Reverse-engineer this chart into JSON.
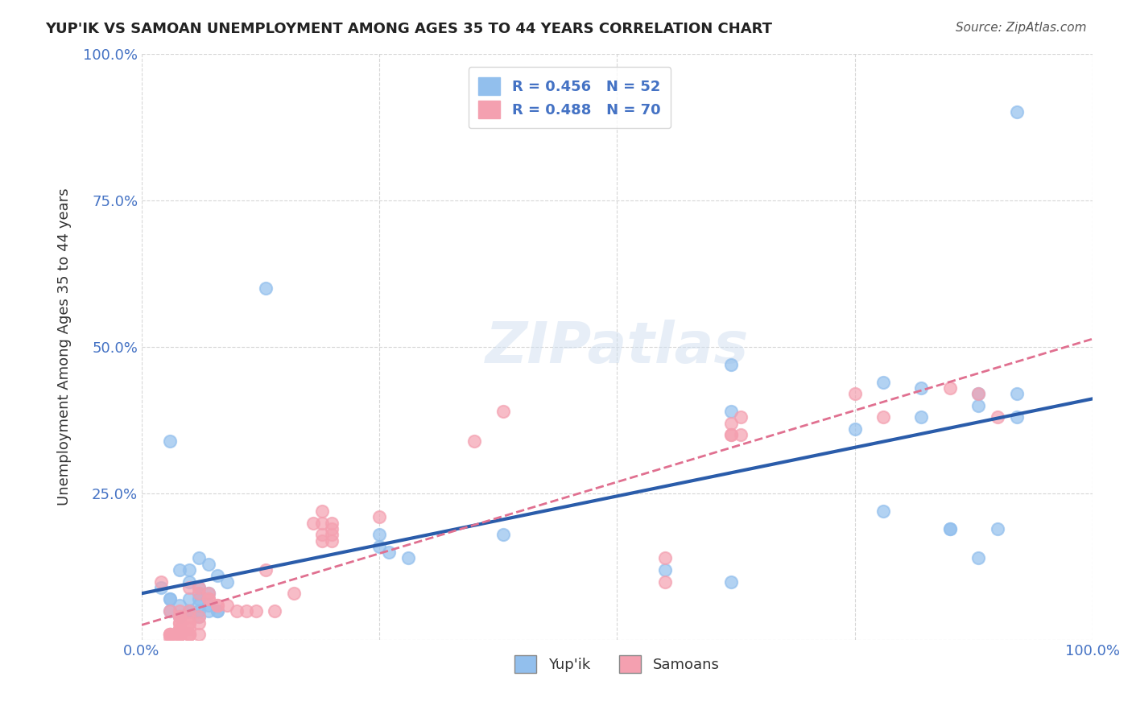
{
  "title": "YUP'IK VS SAMOAN UNEMPLOYMENT AMONG AGES 35 TO 44 YEARS CORRELATION CHART",
  "source": "Source: ZipAtlas.com",
  "xlabel": "",
  "ylabel": "Unemployment Among Ages 35 to 44 years",
  "xlim": [
    0,
    1
  ],
  "ylim": [
    0,
    1
  ],
  "xticks": [
    0.0,
    0.25,
    0.5,
    0.75,
    1.0
  ],
  "yticks": [
    0.0,
    0.25,
    0.5,
    0.75,
    1.0
  ],
  "xtick_labels": [
    "0.0%",
    "",
    "",
    "",
    "100.0%"
  ],
  "ytick_labels": [
    "",
    "25.0%",
    "50.0%",
    "75.0%",
    "100.0%"
  ],
  "legend_labels": [
    "Yup'ik",
    "Samoans"
  ],
  "R_yupik": 0.456,
  "N_yupik": 52,
  "R_samoan": 0.488,
  "N_samoan": 70,
  "yupik_color": "#92bfed",
  "samoan_color": "#f4a0b0",
  "yupik_line_color": "#2a5caa",
  "samoan_line_color": "#e07090",
  "watermark": "ZIPatlas",
  "background_color": "#ffffff",
  "yupik_x": [
    0.92,
    0.62,
    0.13,
    0.82,
    0.82,
    0.92,
    0.88,
    0.92,
    0.78,
    0.88,
    0.75,
    0.78,
    0.85,
    0.9,
    0.85,
    0.88,
    0.62,
    0.38,
    0.55,
    0.62,
    0.03,
    0.06,
    0.07,
    0.05,
    0.04,
    0.08,
    0.09,
    0.05,
    0.02,
    0.06,
    0.06,
    0.07,
    0.03,
    0.03,
    0.05,
    0.06,
    0.07,
    0.06,
    0.04,
    0.03,
    0.08,
    0.05,
    0.08,
    0.07,
    0.06,
    0.05,
    0.04,
    0.06,
    0.25,
    0.25,
    0.26,
    0.28
  ],
  "yupik_y": [
    0.9,
    0.47,
    0.6,
    0.43,
    0.38,
    0.42,
    0.4,
    0.38,
    0.44,
    0.42,
    0.36,
    0.22,
    0.19,
    0.19,
    0.19,
    0.14,
    0.39,
    0.18,
    0.12,
    0.1,
    0.34,
    0.14,
    0.13,
    0.12,
    0.12,
    0.11,
    0.1,
    0.1,
    0.09,
    0.09,
    0.08,
    0.08,
    0.07,
    0.07,
    0.07,
    0.07,
    0.06,
    0.06,
    0.06,
    0.05,
    0.05,
    0.05,
    0.05,
    0.05,
    0.05,
    0.05,
    0.04,
    0.04,
    0.18,
    0.16,
    0.15,
    0.14
  ],
  "samoan_x": [
    0.03,
    0.04,
    0.05,
    0.04,
    0.06,
    0.05,
    0.04,
    0.05,
    0.06,
    0.05,
    0.04,
    0.04,
    0.05,
    0.04,
    0.04,
    0.04,
    0.03,
    0.03,
    0.04,
    0.05,
    0.06,
    0.05,
    0.04,
    0.03,
    0.03,
    0.04,
    0.05,
    0.04,
    0.04,
    0.03,
    0.18,
    0.19,
    0.2,
    0.19,
    0.2,
    0.19,
    0.2,
    0.19,
    0.2,
    0.25,
    0.35,
    0.38,
    0.55,
    0.55,
    0.62,
    0.62,
    0.63,
    0.63,
    0.62,
    0.75,
    0.78,
    0.85,
    0.88,
    0.9,
    0.02,
    0.05,
    0.06,
    0.06,
    0.07,
    0.07,
    0.07,
    0.08,
    0.08,
    0.09,
    0.1,
    0.11,
    0.12,
    0.13,
    0.14,
    0.16
  ],
  "samoan_y": [
    0.05,
    0.05,
    0.05,
    0.04,
    0.04,
    0.04,
    0.04,
    0.03,
    0.03,
    0.03,
    0.03,
    0.03,
    0.02,
    0.02,
    0.02,
    0.01,
    0.01,
    0.01,
    0.01,
    0.01,
    0.01,
    0.01,
    0.01,
    0.01,
    0.01,
    0.01,
    0.01,
    0.01,
    0.01,
    0.005,
    0.2,
    0.22,
    0.2,
    0.2,
    0.19,
    0.18,
    0.18,
    0.17,
    0.17,
    0.21,
    0.34,
    0.39,
    0.14,
    0.1,
    0.35,
    0.37,
    0.35,
    0.38,
    0.35,
    0.42,
    0.38,
    0.43,
    0.42,
    0.38,
    0.1,
    0.09,
    0.09,
    0.08,
    0.08,
    0.07,
    0.07,
    0.06,
    0.06,
    0.06,
    0.05,
    0.05,
    0.05,
    0.12,
    0.05,
    0.08
  ]
}
